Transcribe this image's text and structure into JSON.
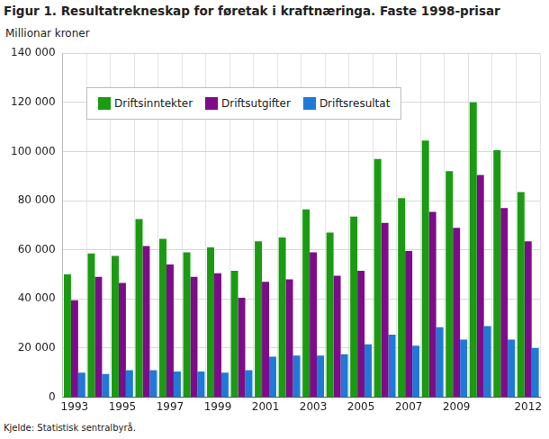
{
  "chart_data": {
    "type": "bar",
    "title": "Figur 1. Resultatrekneskap for føretak i kraftnæringa. Faste 1998-prisar",
    "y_label": "Millionar kroner",
    "source": "Kjelde: Statistisk sentralbyrå.",
    "categories": [
      "1993",
      null,
      "1995",
      null,
      "1997",
      null,
      "1999",
      null,
      "2001",
      null,
      "2003",
      null,
      "2005",
      null,
      "2007",
      null,
      "2009",
      null,
      null,
      "2012"
    ],
    "series": [
      {
        "name": "Driftsinntekter",
        "color": "#1a9b12",
        "values": [
          50000,
          58500,
          57500,
          72500,
          64500,
          59000,
          61000,
          51500,
          63500,
          65000,
          76500,
          67000,
          73500,
          97000,
          81000,
          104500,
          92000,
          120000,
          100500,
          83500
        ]
      },
      {
        "name": "Driftsutgifter",
        "color": "#7d0c8a",
        "values": [
          39500,
          49000,
          46500,
          61500,
          54000,
          49000,
          50500,
          40500,
          47000,
          48000,
          59000,
          49500,
          51500,
          71000,
          59500,
          75500,
          69000,
          90500,
          77000,
          63500
        ]
      },
      {
        "name": "Driftsresultat",
        "color": "#1e7ad6",
        "values": [
          10000,
          9500,
          11000,
          11000,
          10500,
          10500,
          10000,
          11000,
          16500,
          17000,
          17000,
          17500,
          21500,
          25500,
          21000,
          28500,
          23500,
          29000,
          23500,
          20000
        ]
      }
    ],
    "ylim": [
      0,
      140000
    ],
    "yticks": [
      0,
      {
        "value": 20000,
        "label": "20 000"
      },
      {
        "value": 40000,
        "label": "40 000"
      },
      {
        "value": 60000,
        "label": "60 000"
      },
      {
        "value": 80000,
        "label": "80 000"
      },
      {
        "value": 100000,
        "label": "100 000"
      },
      {
        "value": 120000,
        "label": "120 000"
      },
      {
        "value": 140000,
        "label": "140 000"
      }
    ],
    "grid": true,
    "legend": "top-left"
  }
}
